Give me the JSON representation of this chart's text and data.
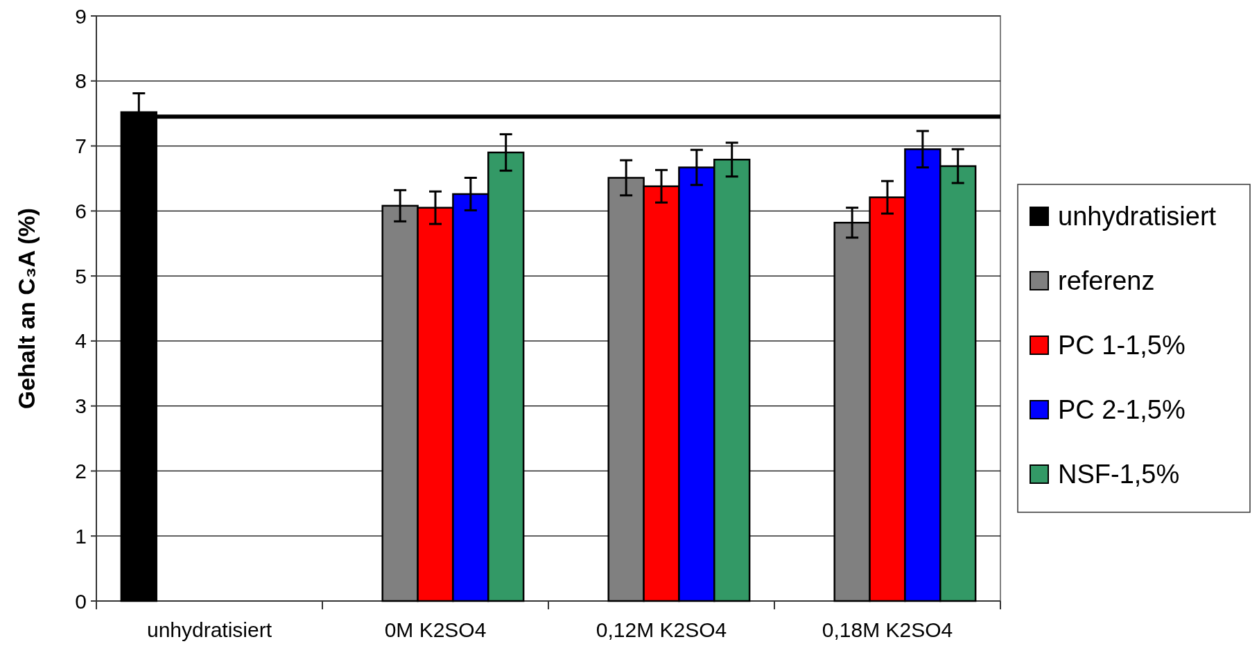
{
  "chart_data": {
    "type": "bar",
    "ylabel": "Gehalt an C₃A (%)",
    "categories": [
      "unhydratisiert",
      "0M K2SO4",
      "0,12M K2SO4",
      "0,18M K2SO4"
    ],
    "series": [
      {
        "name": "unhydratisiert",
        "color": "#000000",
        "values": [
          7.52,
          0,
          0,
          0
        ],
        "errors": [
          0.29,
          null,
          null,
          null
        ]
      },
      {
        "name": "referenz",
        "color": "#808080",
        "values": [
          0,
          6.08,
          6.51,
          5.82
        ],
        "errors": [
          null,
          0.24,
          0.27,
          0.23
        ]
      },
      {
        "name": "PC 1-1,5%",
        "color": "#ff0000",
        "values": [
          0,
          6.05,
          6.38,
          6.21
        ],
        "errors": [
          null,
          0.25,
          0.25,
          0.25
        ]
      },
      {
        "name": "PC 2-1,5%",
        "color": "#0000ff",
        "values": [
          0,
          6.26,
          6.67,
          6.95
        ],
        "errors": [
          null,
          0.25,
          0.27,
          0.28
        ]
      },
      {
        "name": "NSF-1,5%",
        "color": "#339966",
        "values": [
          0,
          6.9,
          6.79,
          6.69
        ],
        "errors": [
          null,
          0.28,
          0.26,
          0.26
        ]
      }
    ],
    "ylim": [
      0,
      9
    ],
    "yticks": [
      0,
      1,
      2,
      3,
      4,
      5,
      6,
      7,
      8,
      9
    ],
    "grid": "y",
    "legend": "right",
    "ref_lines": [
      {
        "axis": "y",
        "value": 7.45,
        "color": "#000000"
      }
    ]
  }
}
